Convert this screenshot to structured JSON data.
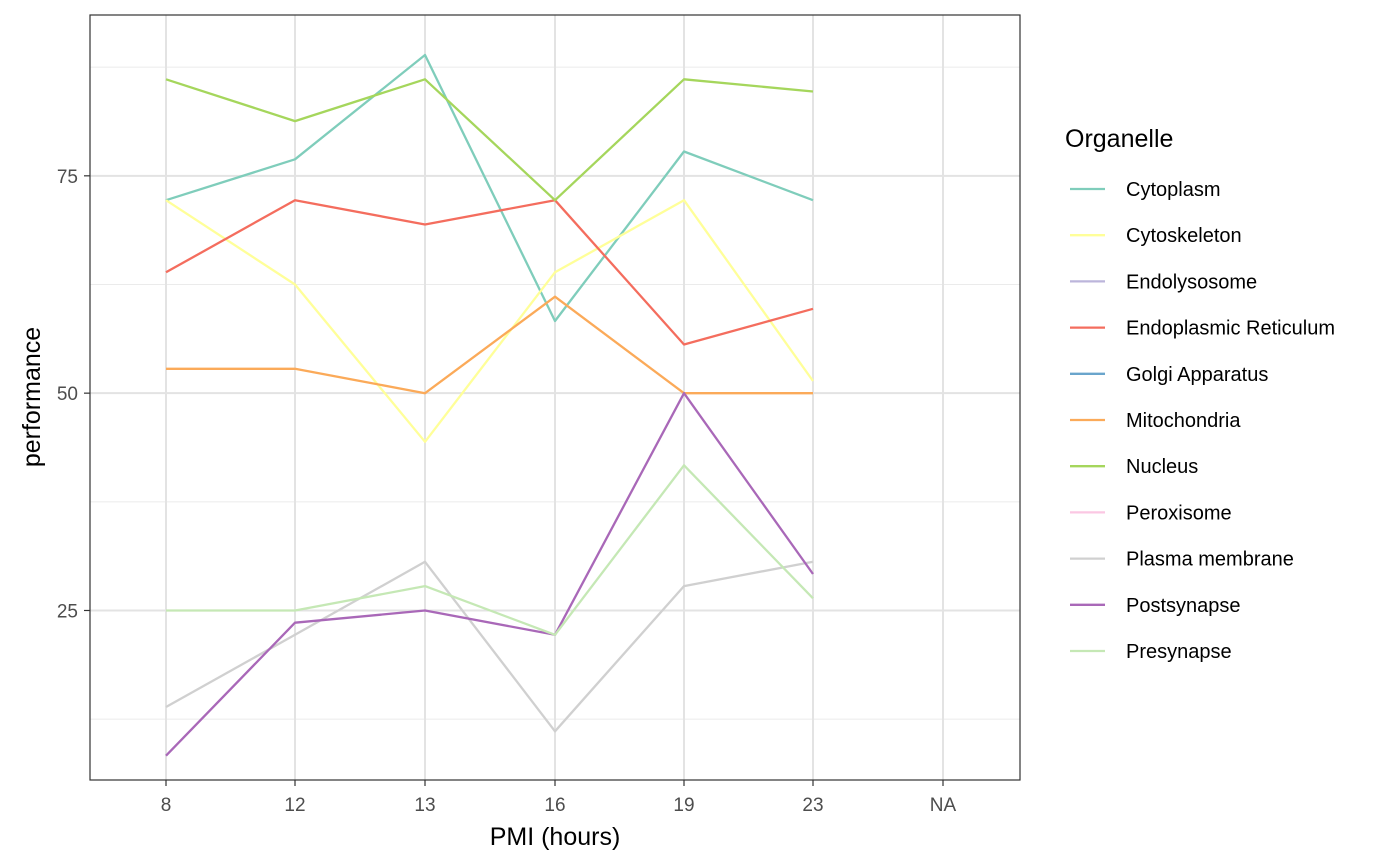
{
  "chart_data": {
    "type": "line",
    "xlabel": "PMI (hours)",
    "ylabel": "performance",
    "categories": [
      "8",
      "12",
      "13",
      "16",
      "19",
      "23",
      "NA"
    ],
    "ylim": [
      5.5,
      93.5
    ],
    "y_ticks": [
      25,
      50,
      75
    ],
    "y_tick_labels": [
      "25",
      "50",
      "75"
    ],
    "grid": true,
    "legend_title": "Organelle",
    "legend_position": "right",
    "series": [
      {
        "name": "Cytoplasm",
        "color": "#7fcdbb",
        "values": [
          72.2,
          76.9,
          88.9,
          58.3,
          77.8,
          72.2,
          null
        ]
      },
      {
        "name": "Cytoskeleton",
        "color": "#ffff99",
        "values": [
          72.2,
          62.5,
          44.4,
          63.9,
          72.2,
          51.4,
          null
        ]
      },
      {
        "name": "Endolysosome",
        "color": "#bcb5db",
        "values": [
          null,
          null,
          null,
          null,
          null,
          null,
          null
        ]
      },
      {
        "name": "Endoplasmic Reticulum",
        "color": "#f46d5e",
        "values": [
          63.9,
          72.2,
          69.4,
          72.2,
          55.6,
          59.7,
          null
        ]
      },
      {
        "name": "Golgi Apparatus",
        "color": "#6aa5cc",
        "values": [
          null,
          null,
          null,
          null,
          null,
          null,
          null
        ]
      },
      {
        "name": "Mitochondria",
        "color": "#fbaa59",
        "values": [
          52.8,
          52.8,
          50.0,
          61.1,
          50.0,
          50.0,
          null
        ]
      },
      {
        "name": "Nucleus",
        "color": "#a5d65c",
        "values": [
          86.1,
          81.3,
          86.1,
          72.2,
          86.1,
          84.7,
          null
        ]
      },
      {
        "name": "Peroxisome",
        "color": "#fbc7e3",
        "values": [
          null,
          null,
          null,
          null,
          null,
          null,
          null
        ]
      },
      {
        "name": "Plasma membrane",
        "color": "#d0d0d0",
        "values": [
          13.9,
          22.2,
          30.6,
          11.1,
          27.8,
          30.6,
          null
        ]
      },
      {
        "name": "Postsynapse",
        "color": "#a968b8",
        "values": [
          8.3,
          23.6,
          25.0,
          22.2,
          50.0,
          29.2,
          null
        ]
      },
      {
        "name": "Presynapse",
        "color": "#c5e8b5",
        "values": [
          25.0,
          25.0,
          27.8,
          22.2,
          41.7,
          26.4,
          null
        ]
      }
    ]
  }
}
